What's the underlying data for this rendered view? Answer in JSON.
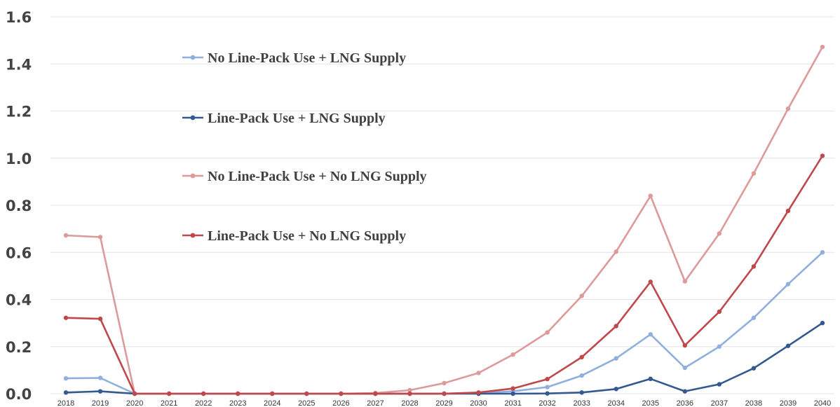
{
  "chart_data": {
    "type": "line",
    "title": "",
    "xlabel": "",
    "ylabel": "",
    "ylim": [
      0,
      1.6
    ],
    "yticks": [
      "0.0",
      "0.2",
      "0.4",
      "0.6",
      "0.8",
      "1.0",
      "1.2",
      "1.4",
      "1.6"
    ],
    "grid": true,
    "legend_position": "top-left inside plot",
    "x": [
      "2018",
      "2019",
      "2020",
      "2021",
      "2022",
      "2023",
      "2024",
      "2025",
      "2026",
      "2027",
      "2028",
      "2029",
      "2030",
      "2031",
      "2032",
      "2033",
      "2034",
      "2035",
      "2036",
      "2037",
      "2038",
      "2039",
      "2040"
    ],
    "series": [
      {
        "name": "No Line-Pack Use +  LNG Supply",
        "color": "#8fb0dc",
        "values": [
          0.065,
          0.067,
          0,
          0,
          0,
          0,
          0,
          0,
          0,
          0,
          0,
          0,
          0.002,
          0.01,
          0.028,
          0.077,
          0.15,
          0.252,
          0.11,
          0.2,
          0.322,
          0.465,
          0.6
        ]
      },
      {
        "name": "Line-Pack Use +  LNG Supply",
        "color": "#34598f",
        "values": [
          0.005,
          0.01,
          0,
          0,
          0,
          0,
          0,
          0,
          0,
          0,
          0,
          0,
          0,
          0,
          0.001,
          0.005,
          0.02,
          0.063,
          0.01,
          0.04,
          0.108,
          0.203,
          0.3
        ]
      },
      {
        "name": "No Line-Pack Use + No LNG Supply",
        "color": "#dc9a9a",
        "values": [
          0.672,
          0.665,
          0,
          0,
          0,
          0,
          0,
          0,
          0,
          0.003,
          0.015,
          0.045,
          0.088,
          0.166,
          0.26,
          0.415,
          0.603,
          0.84,
          0.477,
          0.68,
          0.935,
          1.21,
          1.472
        ]
      },
      {
        "name": "Line-Pack Use + No LNG Supply",
        "color": "#c0474a",
        "values": [
          0.322,
          0.318,
          0,
          0,
          0,
          0,
          0,
          0,
          0,
          0,
          0,
          0,
          0.005,
          0.022,
          0.062,
          0.155,
          0.287,
          0.475,
          0.205,
          0.348,
          0.54,
          0.776,
          1.01
        ]
      }
    ]
  }
}
